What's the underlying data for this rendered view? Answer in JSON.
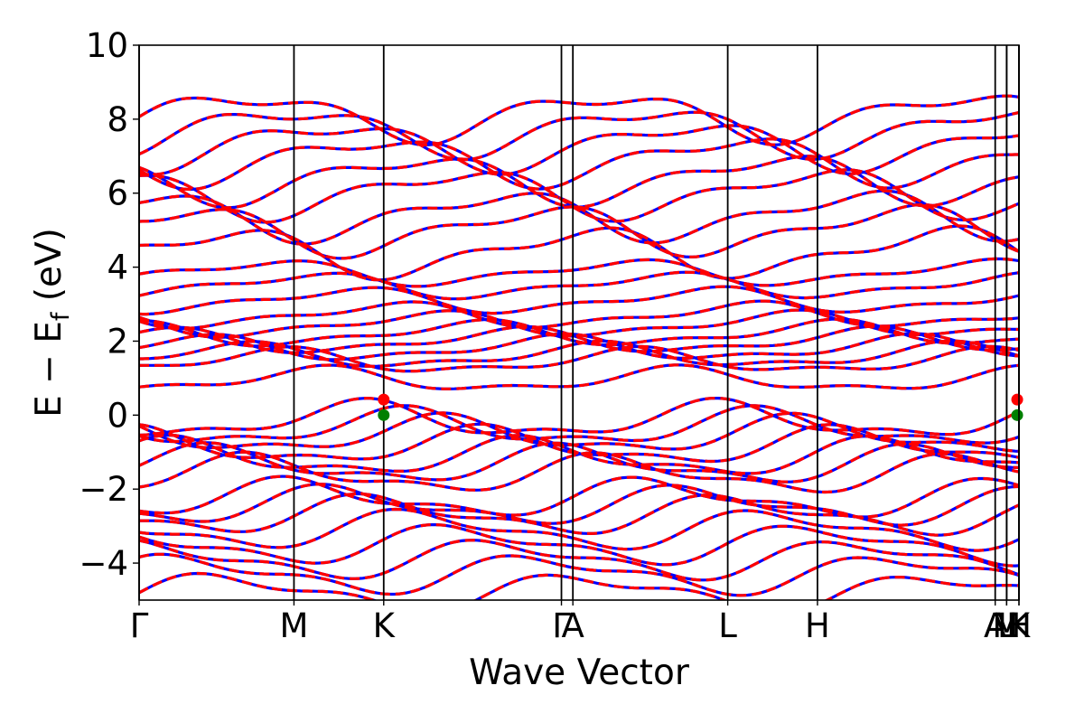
{
  "chart_data": {
    "type": "line",
    "title": "",
    "xlabel": "Wave Vector",
    "ylabel": {
      "prefix": "E − E",
      "subscript": "f",
      "suffix": " (eV)"
    },
    "ylim": [
      -5,
      10
    ],
    "yticks": [
      {
        "value": -4,
        "label": "−4"
      },
      {
        "value": -2,
        "label": "−2"
      },
      {
        "value": 0,
        "label": "0"
      },
      {
        "value": 2,
        "label": "2"
      },
      {
        "value": 4,
        "label": "4"
      },
      {
        "value": 6,
        "label": "6"
      },
      {
        "value": 8,
        "label": "8"
      },
      {
        "value": 10,
        "label": "10"
      }
    ],
    "xlim": [
      0,
      10
    ],
    "high_symmetry_points": [
      {
        "label": "Γ",
        "x": 0.0
      },
      {
        "label": "M",
        "x": 1.76
      },
      {
        "label": "K",
        "x": 2.78
      },
      {
        "label": "Γ",
        "x": 4.8
      },
      {
        "label": "A",
        "x": 4.93
      },
      {
        "label": "L",
        "x": 6.69
      },
      {
        "label": "H",
        "x": 7.71
      },
      {
        "label": "A",
        "x": 9.73
      },
      {
        "label": "L",
        "x": 9.86
      },
      {
        "label": "M",
        "x": 9.86
      },
      {
        "label": "H",
        "x": 10.0
      },
      {
        "label": "K",
        "x": 10.0
      }
    ],
    "grid": false,
    "legend": null,
    "colors": {
      "spin_up": "#0000ff",
      "spin_down": "#ff0000",
      "cbm": "#ff0000",
      "vbm": "#008000"
    },
    "extrema_markers": [
      {
        "kind": "cbm",
        "x": 2.78,
        "y": 0.42
      },
      {
        "kind": "vbm",
        "x": 2.78,
        "y": 0.0
      },
      {
        "kind": "cbm",
        "x": 9.98,
        "y": 0.42
      },
      {
        "kind": "vbm",
        "x": 9.98,
        "y": 0.0
      }
    ],
    "series": [
      {
        "style": "solid",
        "color": "#0000ff",
        "bands": [
          -4.8,
          -4.3,
          -3.9,
          -3.5,
          -3.1,
          -2.7,
          -2.45,
          -2.25,
          -1.6,
          -1.35,
          -1.15,
          -0.85,
          -0.55,
          -0.35,
          -0.15,
          0.95,
          1.45,
          1.6,
          1.8,
          2.0,
          2.2,
          2.45,
          2.7,
          3.1,
          3.5,
          3.85,
          4.4,
          5.0,
          5.4,
          6.0,
          6.4,
          6.9,
          7.3,
          7.7,
          8.1
        ]
      },
      {
        "style": "dashed",
        "color": "#ff0000",
        "bands": [
          -4.8,
          -4.3,
          -3.9,
          -3.5,
          -3.1,
          -2.7,
          -2.45,
          -2.25,
          -1.6,
          -1.35,
          -1.15,
          -0.85,
          -0.55,
          -0.35,
          -0.15,
          0.95,
          1.45,
          1.6,
          1.8,
          2.0,
          2.2,
          2.45,
          2.7,
          3.1,
          3.5,
          3.85,
          4.4,
          5.0,
          5.4,
          6.0,
          6.4,
          6.9,
          7.3,
          7.7,
          8.1
        ]
      }
    ]
  }
}
